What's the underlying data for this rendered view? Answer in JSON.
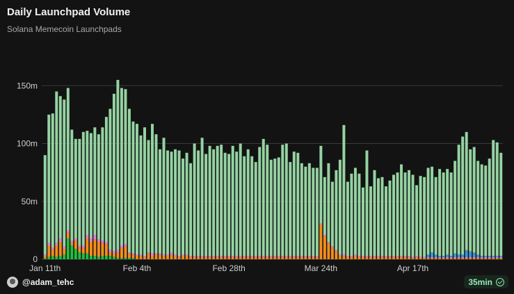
{
  "header": {
    "title": "Daily Launchpad Volume",
    "subtitle": "Solana Memecoin Launchpads"
  },
  "footer": {
    "username": "@adam_tehc",
    "refresh_badge": "35min"
  },
  "colors": {
    "background": "#131313",
    "grid": "#3a3a3a",
    "series": [
      "#95d3a2",
      "#f28e1c",
      "#20c040",
      "#e77fd6",
      "#2f9be0",
      "#8e8e8e"
    ]
  },
  "chart_data": {
    "type": "bar",
    "stacked": true,
    "grid": true,
    "y_tick_labels": [
      "0",
      "50m",
      "100m",
      "150m"
    ],
    "y_ticks": [
      0,
      50,
      100,
      150
    ],
    "ylim": [
      0,
      185
    ],
    "x_tick_labels": [
      {
        "label": "Jan 11th",
        "index": 0
      },
      {
        "label": "Feb 4th",
        "index": 24
      },
      {
        "label": "Feb 28th",
        "index": 48
      },
      {
        "label": "Mar 24th",
        "index": 72
      },
      {
        "label": "Apr 17th",
        "index": 96
      }
    ],
    "categories_count": 120,
    "series": [
      {
        "color": "#95d3a2",
        "values": [
          86,
          111,
          116,
          131,
          123,
          127,
          123,
          96,
          86,
          92,
          98,
          90,
          91,
          93,
          91,
          98,
          108,
          122,
          136,
          147,
          136,
          134,
          124,
          114,
          113,
          103,
          111,
          97,
          112,
          103,
          90,
          101,
          90,
          87,
          91,
          91,
          83,
          88,
          80,
          97,
          91,
          102,
          88,
          95,
          92,
          95,
          96,
          89,
          88,
          95,
          90,
          97,
          86,
          92,
          86,
          81,
          94,
          101,
          96,
          83,
          84,
          85,
          96,
          97,
          81,
          90,
          89,
          80,
          77,
          80,
          76,
          76,
          67,
          50,
          68,
          56,
          69,
          82,
          112,
          64,
          71,
          75,
          71,
          59,
          91,
          60,
          74,
          67,
          68,
          60,
          65,
          70,
          72,
          79,
          72,
          74,
          71,
          61,
          70,
          69,
          75,
          74,
          67,
          75,
          72,
          74,
          72,
          80,
          95,
          102,
          102,
          88,
          91,
          81,
          79,
          78,
          84,
          100,
          98,
          89
        ]
      },
      {
        "color": "#f28e1c",
        "values": [
          2,
          10,
          5,
          10,
          12,
          5,
          5,
          2,
          7,
          4,
          5,
          13,
          12,
          14,
          13,
          11,
          10,
          3,
          3,
          5,
          9,
          10,
          4,
          3,
          3,
          3,
          2,
          5,
          3,
          4,
          4,
          3,
          3,
          4,
          3,
          2,
          3,
          3,
          2,
          2,
          2,
          2,
          2,
          2,
          2,
          2,
          2,
          2,
          2,
          2,
          2,
          2,
          2,
          2,
          2,
          2,
          2,
          2,
          2,
          2,
          2,
          2,
          2,
          2,
          2,
          2,
          2,
          2,
          2,
          2,
          2,
          2,
          30,
          20,
          14,
          10,
          7,
          3,
          3,
          2,
          2,
          3,
          2,
          2,
          2,
          2,
          2,
          2,
          2,
          2,
          2,
          2,
          2,
          2,
          2,
          2,
          1,
          2,
          1,
          1,
          1,
          1,
          1,
          1,
          1,
          1,
          1,
          1,
          1,
          1,
          1,
          1,
          1,
          1,
          1,
          1,
          1,
          1,
          1,
          1
        ]
      },
      {
        "color": "#20c040",
        "values": [
          1,
          2,
          3,
          2,
          3,
          4,
          18,
          12,
          9,
          6,
          5,
          5,
          3,
          3,
          2,
          3,
          3,
          3,
          2,
          1,
          1,
          1,
          1,
          1,
          0,
          0,
          0,
          0,
          0,
          0,
          0,
          0,
          0,
          0,
          0,
          0,
          0,
          0,
          0,
          0,
          0,
          0,
          0,
          0,
          0,
          0,
          0,
          0,
          0,
          0,
          0,
          0,
          0,
          0,
          0,
          0,
          0,
          0,
          0,
          0,
          0,
          0,
          0,
          0,
          0,
          0,
          0,
          0,
          0,
          0,
          0,
          0,
          0,
          0,
          0,
          0,
          0,
          0,
          0,
          0,
          0,
          0,
          0,
          0,
          0,
          0,
          0,
          0,
          0,
          0,
          0,
          0,
          0,
          0,
          0,
          0,
          0,
          0,
          0,
          0,
          0,
          0,
          0,
          0,
          0,
          0,
          0,
          0,
          0,
          0,
          0,
          0,
          0,
          0,
          0,
          0,
          0,
          0,
          0,
          0
        ]
      },
      {
        "color": "#e77fd6",
        "values": [
          1,
          2,
          2,
          2,
          3,
          2,
          2,
          2,
          2,
          2,
          2,
          3,
          3,
          4,
          2,
          2,
          2,
          2,
          2,
          2,
          2,
          2,
          1,
          1,
          1,
          1,
          1,
          1,
          2,
          1,
          1,
          1,
          1,
          2,
          1,
          1,
          1,
          1,
          1,
          1,
          1,
          1,
          1,
          1,
          1,
          1,
          1,
          1,
          1,
          1,
          1,
          1,
          1,
          1,
          1,
          1,
          1,
          1,
          1,
          1,
          1,
          1,
          1,
          1,
          1,
          1,
          1,
          1,
          1,
          1,
          1,
          1,
          1,
          1,
          1,
          1,
          1,
          1,
          1,
          1,
          1,
          1,
          1,
          1,
          1,
          1,
          1,
          1,
          1,
          1,
          1,
          1,
          1,
          1,
          1,
          1,
          1,
          1,
          1,
          1,
          1,
          1,
          1,
          1,
          1,
          1,
          1,
          1,
          1,
          1,
          1,
          1,
          1,
          1,
          1,
          1,
          1,
          1,
          1,
          1
        ]
      },
      {
        "color": "#2f9be0",
        "values": [
          0,
          0,
          0,
          0,
          0,
          0,
          0,
          0,
          0,
          0,
          0,
          0,
          0,
          0,
          0,
          0,
          0,
          0,
          0,
          0,
          0,
          0,
          0,
          0,
          0,
          0,
          0,
          0,
          0,
          0,
          0,
          0,
          0,
          0,
          0,
          0,
          0,
          0,
          0,
          0,
          0,
          0,
          0,
          0,
          0,
          0,
          0,
          0,
          0,
          0,
          0,
          0,
          0,
          0,
          0,
          0,
          0,
          0,
          0,
          0,
          0,
          0,
          0,
          0,
          0,
          0,
          0,
          0,
          0,
          0,
          0,
          0,
          0,
          0,
          0,
          0,
          0,
          0,
          0,
          0,
          0,
          0,
          0,
          0,
          0,
          0,
          0,
          0,
          0,
          0,
          0,
          0,
          0,
          0,
          0,
          0,
          0,
          0,
          0,
          0,
          2,
          4,
          2,
          1,
          1,
          2,
          1,
          3,
          2,
          2,
          5,
          4,
          3,
          2,
          1,
          1,
          1,
          1,
          1,
          1
        ]
      },
      {
        "color": "#8e8e8e",
        "values": [
          0,
          0,
          0,
          0,
          0,
          0,
          0,
          0,
          0,
          0,
          0,
          0,
          0,
          0,
          0,
          0,
          0,
          0,
          0,
          0,
          0,
          0,
          0,
          0,
          0,
          0,
          0,
          0,
          0,
          0,
          0,
          0,
          0,
          0,
          0,
          0,
          0,
          0,
          0,
          0,
          0,
          0,
          0,
          0,
          0,
          0,
          0,
          0,
          0,
          0,
          0,
          0,
          0,
          0,
          0,
          0,
          0,
          0,
          0,
          0,
          0,
          0,
          0,
          0,
          0,
          0,
          0,
          0,
          0,
          0,
          0,
          0,
          0,
          0,
          0,
          0,
          0,
          0,
          0,
          0,
          0,
          0,
          0,
          0,
          0,
          0,
          0,
          0,
          0,
          0,
          0,
          0,
          0,
          0,
          0,
          0,
          0,
          0,
          0,
          0,
          0,
          0,
          0,
          0,
          0,
          0,
          0,
          0,
          0,
          0,
          1,
          1,
          1,
          0,
          0,
          0,
          0,
          0,
          0,
          0
        ]
      }
    ]
  }
}
